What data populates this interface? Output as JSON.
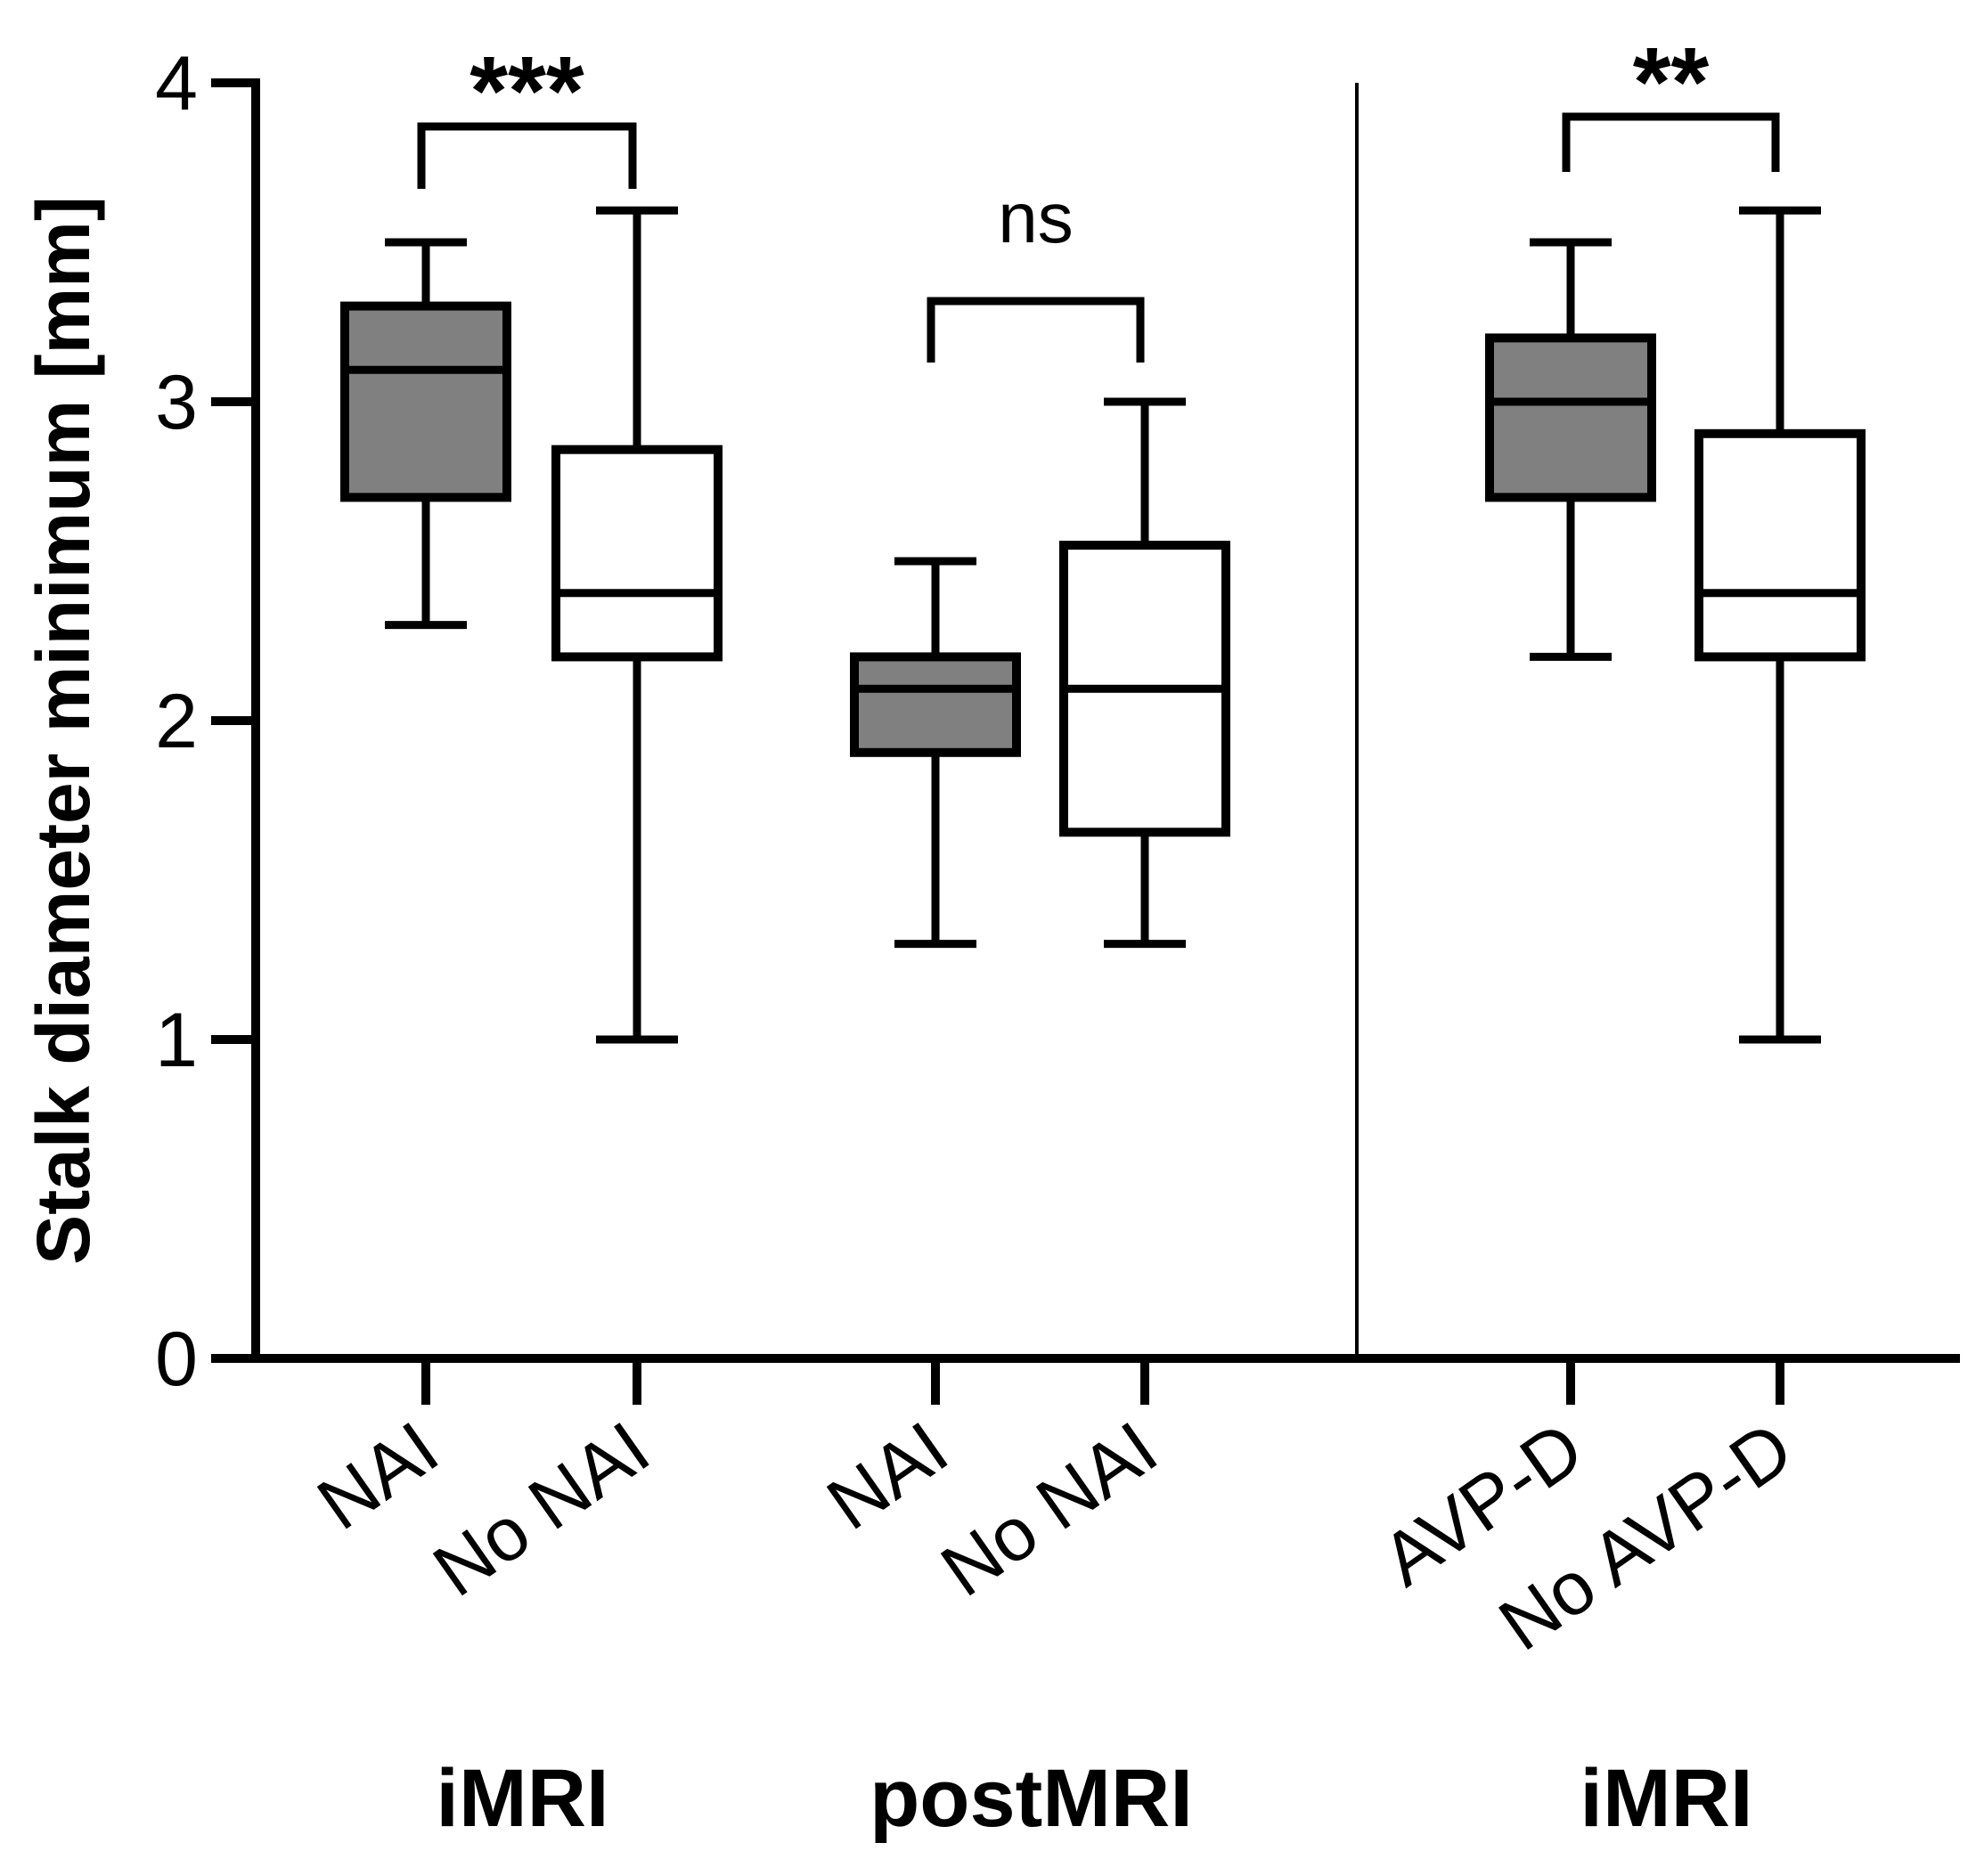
{
  "chart_data": {
    "type": "box",
    "ylabel": "Stalk diameter minimum [mm]",
    "ylim": [
      0,
      4
    ],
    "yticks": [
      "0",
      "1",
      "2",
      "3",
      "4"
    ],
    "colors": {
      "filled": "#808080",
      "open": "#ffffff",
      "stroke": "#000000"
    },
    "boxes": [
      {
        "label": "NAI",
        "fill": "filled",
        "min": 2.3,
        "q1": 2.7,
        "median": 3.1,
        "q3": 3.3,
        "max": 3.5
      },
      {
        "label": "No NAI",
        "fill": "open",
        "min": 1.0,
        "q1": 2.2,
        "median": 2.4,
        "q3": 2.85,
        "max": 3.6
      },
      {
        "label": "NAI",
        "fill": "filled",
        "min": 1.3,
        "q1": 1.9,
        "median": 2.1,
        "q3": 2.2,
        "max": 2.5
      },
      {
        "label": "No NAI",
        "fill": "open",
        "min": 1.3,
        "q1": 1.65,
        "median": 2.1,
        "q3": 2.55,
        "max": 3.0
      },
      {
        "label": "AVP-D",
        "fill": "filled",
        "min": 2.2,
        "q1": 2.7,
        "median": 3.0,
        "q3": 3.2,
        "max": 3.5
      },
      {
        "label": "No AVP-D",
        "fill": "open",
        "min": 1.0,
        "q1": 2.2,
        "median": 2.4,
        "q3": 2.9,
        "max": 3.6
      }
    ],
    "groups": [
      {
        "label": "iMRI",
        "boxes": [
          0,
          1
        ]
      },
      {
        "label": "postMRI",
        "boxes": [
          2,
          3
        ]
      },
      {
        "label": "iMRI",
        "boxes": [
          4,
          5
        ]
      }
    ],
    "comparisons": [
      {
        "boxes": [
          0,
          1
        ],
        "label": "***"
      },
      {
        "boxes": [
          2,
          3
        ],
        "label": "ns"
      },
      {
        "boxes": [
          4,
          5
        ],
        "label": "**"
      }
    ]
  }
}
